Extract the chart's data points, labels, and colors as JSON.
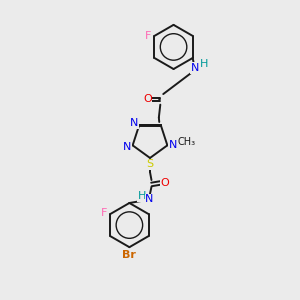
{
  "bg_color": "#ebebeb",
  "bond_color": "#1a1a1a",
  "colors": {
    "N": "#0000ee",
    "O": "#ee0000",
    "S": "#cccc00",
    "F": "#ff69b4",
    "Br": "#cc6600",
    "C": "#1a1a1a",
    "H": "#009999"
  },
  "figsize": [
    3.0,
    3.0
  ],
  "dpi": 100,
  "xlim": [
    0,
    10
  ],
  "ylim": [
    0,
    10
  ]
}
